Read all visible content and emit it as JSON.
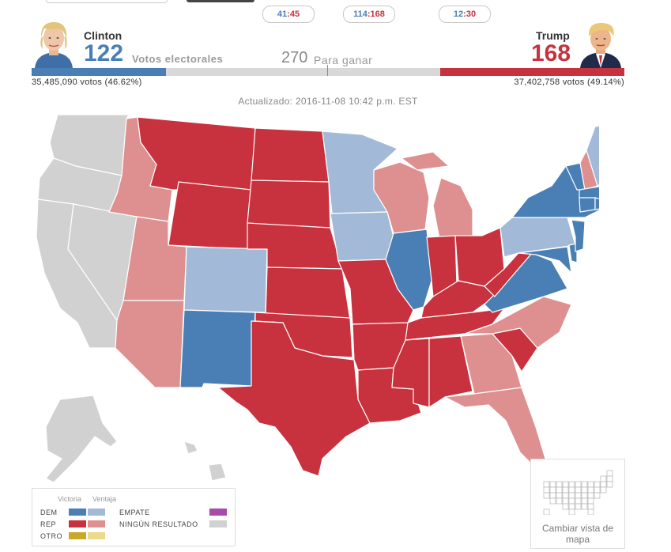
{
  "scores": [
    {
      "dem": "41",
      "rep": "45"
    },
    {
      "dem": "114",
      "rep": "168"
    },
    {
      "dem": "12",
      "rep": "30"
    }
  ],
  "clinton": {
    "name": "Clinton",
    "ev": "122",
    "votes": "35,485,090 votos (46.62%)"
  },
  "trump": {
    "name": "Trump",
    "ev": "168",
    "votes": "37,402,758 votos (49.14%)"
  },
  "ev_label": "Votos electorales",
  "to_win": {
    "number": "270",
    "label": "Para ganar"
  },
  "bar": {
    "dem_fraction": 0.226,
    "rep_fraction": 0.311
  },
  "updated": "Actualizado: 2016-11-08 10:42 p.m. EST",
  "colors": {
    "dem_win": "#4a7fb5",
    "dem_lead": "#a2b9d8",
    "rep_win": "#c8323e",
    "rep_lead": "#de9090",
    "tie": "#a94ba8",
    "none": "#d1d1d1",
    "other_win": "#c8a92a",
    "other_lead": "#ecd98c"
  },
  "legend": {
    "header_win": "Victoria",
    "header_lead": "Ventaja",
    "dem": "DEM",
    "rep": "REP",
    "other": "OTRO",
    "tie": "EMPATE",
    "none": "NINGÚN RESULTADO"
  },
  "change_view": "Cambiar vista de mapa"
}
